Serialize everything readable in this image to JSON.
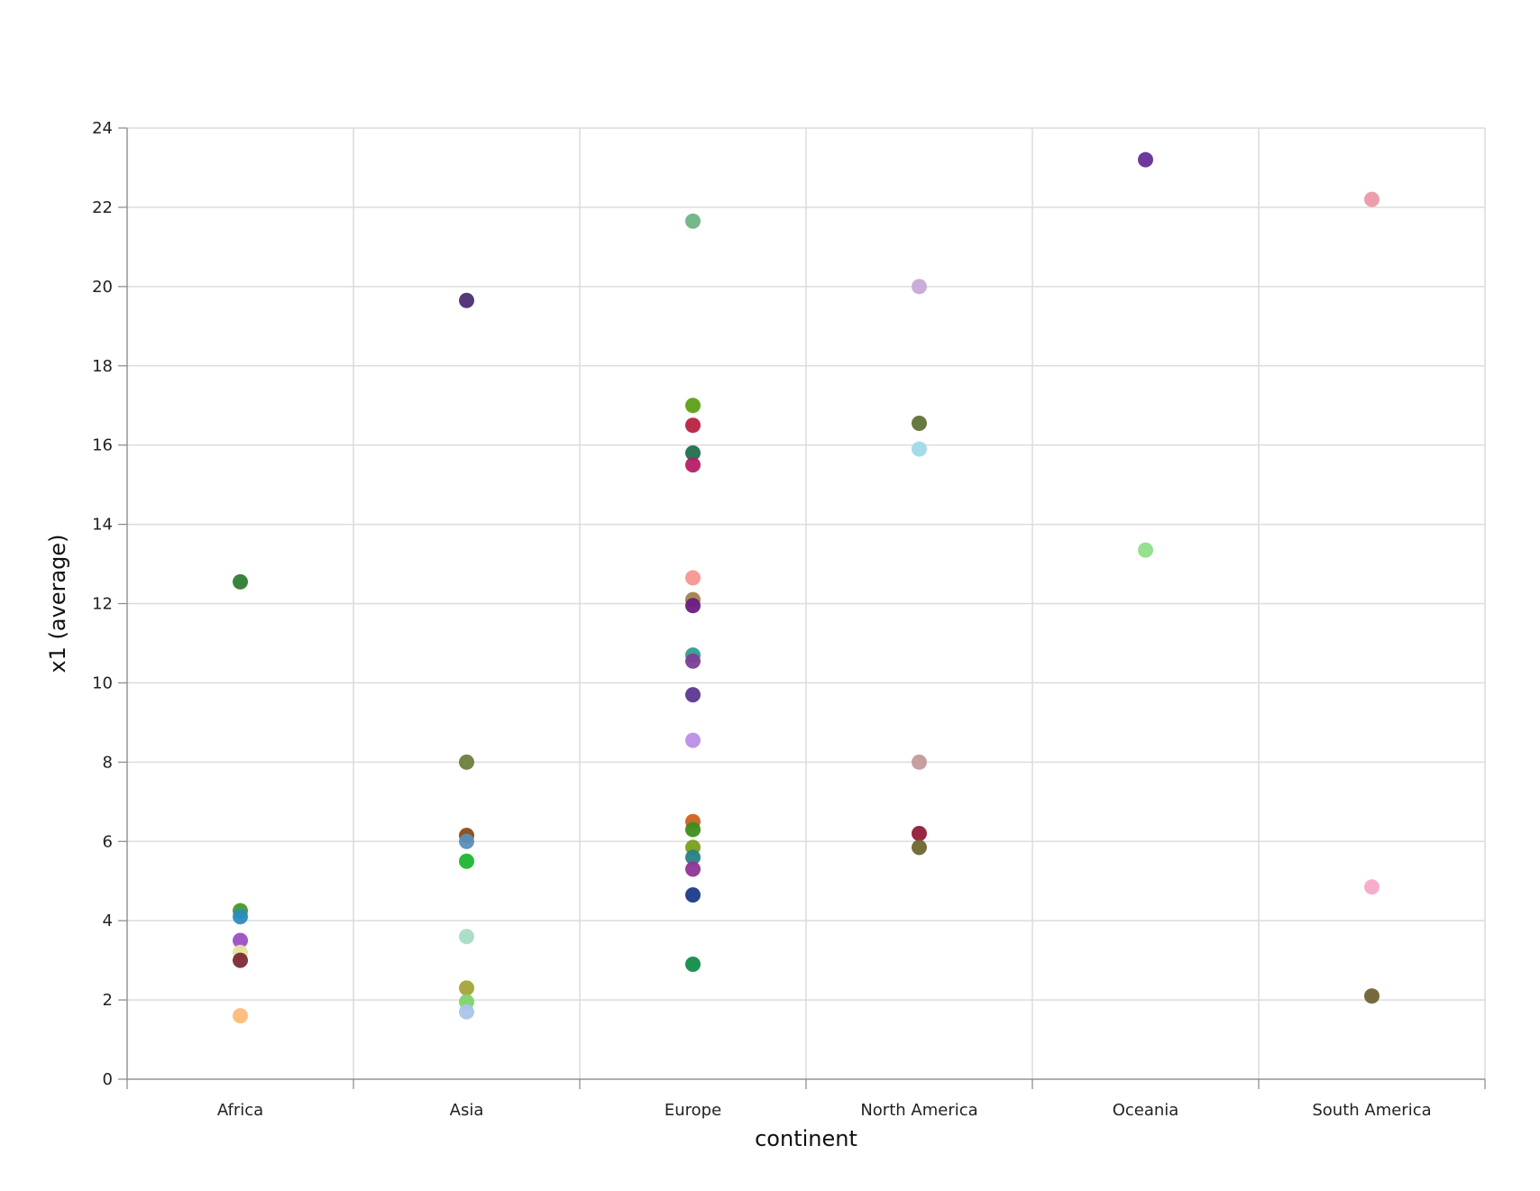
{
  "chart_data": {
    "type": "scatter",
    "title": "",
    "xlabel": "continent",
    "ylabel": "x1 (average)",
    "categories": [
      "Africa",
      "Asia",
      "Europe",
      "North America",
      "Oceania",
      "South America"
    ],
    "ylim": [
      0,
      24
    ],
    "yticks": [
      0,
      2,
      4,
      6,
      8,
      10,
      12,
      14,
      16,
      18,
      20,
      22,
      24
    ],
    "grid": true,
    "legend": "none",
    "points": [
      {
        "x": "Africa",
        "y": 12.55,
        "color": "#2e7d32"
      },
      {
        "x": "Africa",
        "y": 4.25,
        "color": "#3f9a2c"
      },
      {
        "x": "Africa",
        "y": 4.1,
        "color": "#2b8cbe"
      },
      {
        "x": "Africa",
        "y": 3.5,
        "color": "#9c4fc4"
      },
      {
        "x": "Africa",
        "y": 3.2,
        "color": "#e6e39a"
      },
      {
        "x": "Africa",
        "y": 3.0,
        "color": "#7d2a33"
      },
      {
        "x": "Africa",
        "y": 1.6,
        "color": "#fdbb78"
      },
      {
        "x": "Asia",
        "y": 19.65,
        "color": "#4c2f73"
      },
      {
        "x": "Asia",
        "y": 8.0,
        "color": "#6b7f3c"
      },
      {
        "x": "Asia",
        "y": 6.15,
        "color": "#8b4a12"
      },
      {
        "x": "Asia",
        "y": 6.0,
        "color": "#5b8fb9"
      },
      {
        "x": "Asia",
        "y": 5.5,
        "color": "#1fb531"
      },
      {
        "x": "Asia",
        "y": 3.6,
        "color": "#a8dcc4"
      },
      {
        "x": "Asia",
        "y": 2.3,
        "color": "#a3a33a"
      },
      {
        "x": "Asia",
        "y": 1.95,
        "color": "#7ed36a"
      },
      {
        "x": "Asia",
        "y": 1.7,
        "color": "#a9c5e8"
      },
      {
        "x": "Europe",
        "y": 21.65,
        "color": "#6fb386"
      },
      {
        "x": "Europe",
        "y": 17.0,
        "color": "#5ba015"
      },
      {
        "x": "Europe",
        "y": 16.5,
        "color": "#b8223f"
      },
      {
        "x": "Europe",
        "y": 15.8,
        "color": "#1f6f4f"
      },
      {
        "x": "Europe",
        "y": 15.5,
        "color": "#b51e68"
      },
      {
        "x": "Europe",
        "y": 12.65,
        "color": "#f79693"
      },
      {
        "x": "Europe",
        "y": 12.1,
        "color": "#a3814e"
      },
      {
        "x": "Europe",
        "y": 11.95,
        "color": "#6a1b82"
      },
      {
        "x": "Europe",
        "y": 10.7,
        "color": "#2f9e8f"
      },
      {
        "x": "Europe",
        "y": 10.55,
        "color": "#7b3f97"
      },
      {
        "x": "Europe",
        "y": 9.7,
        "color": "#5a3790"
      },
      {
        "x": "Europe",
        "y": 8.55,
        "color": "#bb8ee8"
      },
      {
        "x": "Europe",
        "y": 6.5,
        "color": "#cf6122"
      },
      {
        "x": "Europe",
        "y": 6.3,
        "color": "#3e8d1e"
      },
      {
        "x": "Europe",
        "y": 5.85,
        "color": "#7a9e1a"
      },
      {
        "x": "Europe",
        "y": 5.6,
        "color": "#2a7f86"
      },
      {
        "x": "Europe",
        "y": 5.3,
        "color": "#8f3595"
      },
      {
        "x": "Europe",
        "y": 4.65,
        "color": "#1a3a8a"
      },
      {
        "x": "Europe",
        "y": 2.9,
        "color": "#128c47"
      },
      {
        "x": "North America",
        "y": 20.0,
        "color": "#c7a9d6"
      },
      {
        "x": "North America",
        "y": 16.55,
        "color": "#5e7236"
      },
      {
        "x": "North America",
        "y": 15.9,
        "color": "#9fd9e8"
      },
      {
        "x": "North America",
        "y": 8.0,
        "color": "#c39a99"
      },
      {
        "x": "North America",
        "y": 6.2,
        "color": "#921c37"
      },
      {
        "x": "North America",
        "y": 5.85,
        "color": "#6e6630"
      },
      {
        "x": "Oceania",
        "y": 23.2,
        "color": "#662e98"
      },
      {
        "x": "Oceania",
        "y": 13.35,
        "color": "#8fdf8a"
      },
      {
        "x": "South America",
        "y": 22.2,
        "color": "#ea9aa8"
      },
      {
        "x": "South America",
        "y": 4.85,
        "color": "#f6aac9"
      },
      {
        "x": "South America",
        "y": 2.1,
        "color": "#6f6333"
      }
    ]
  }
}
